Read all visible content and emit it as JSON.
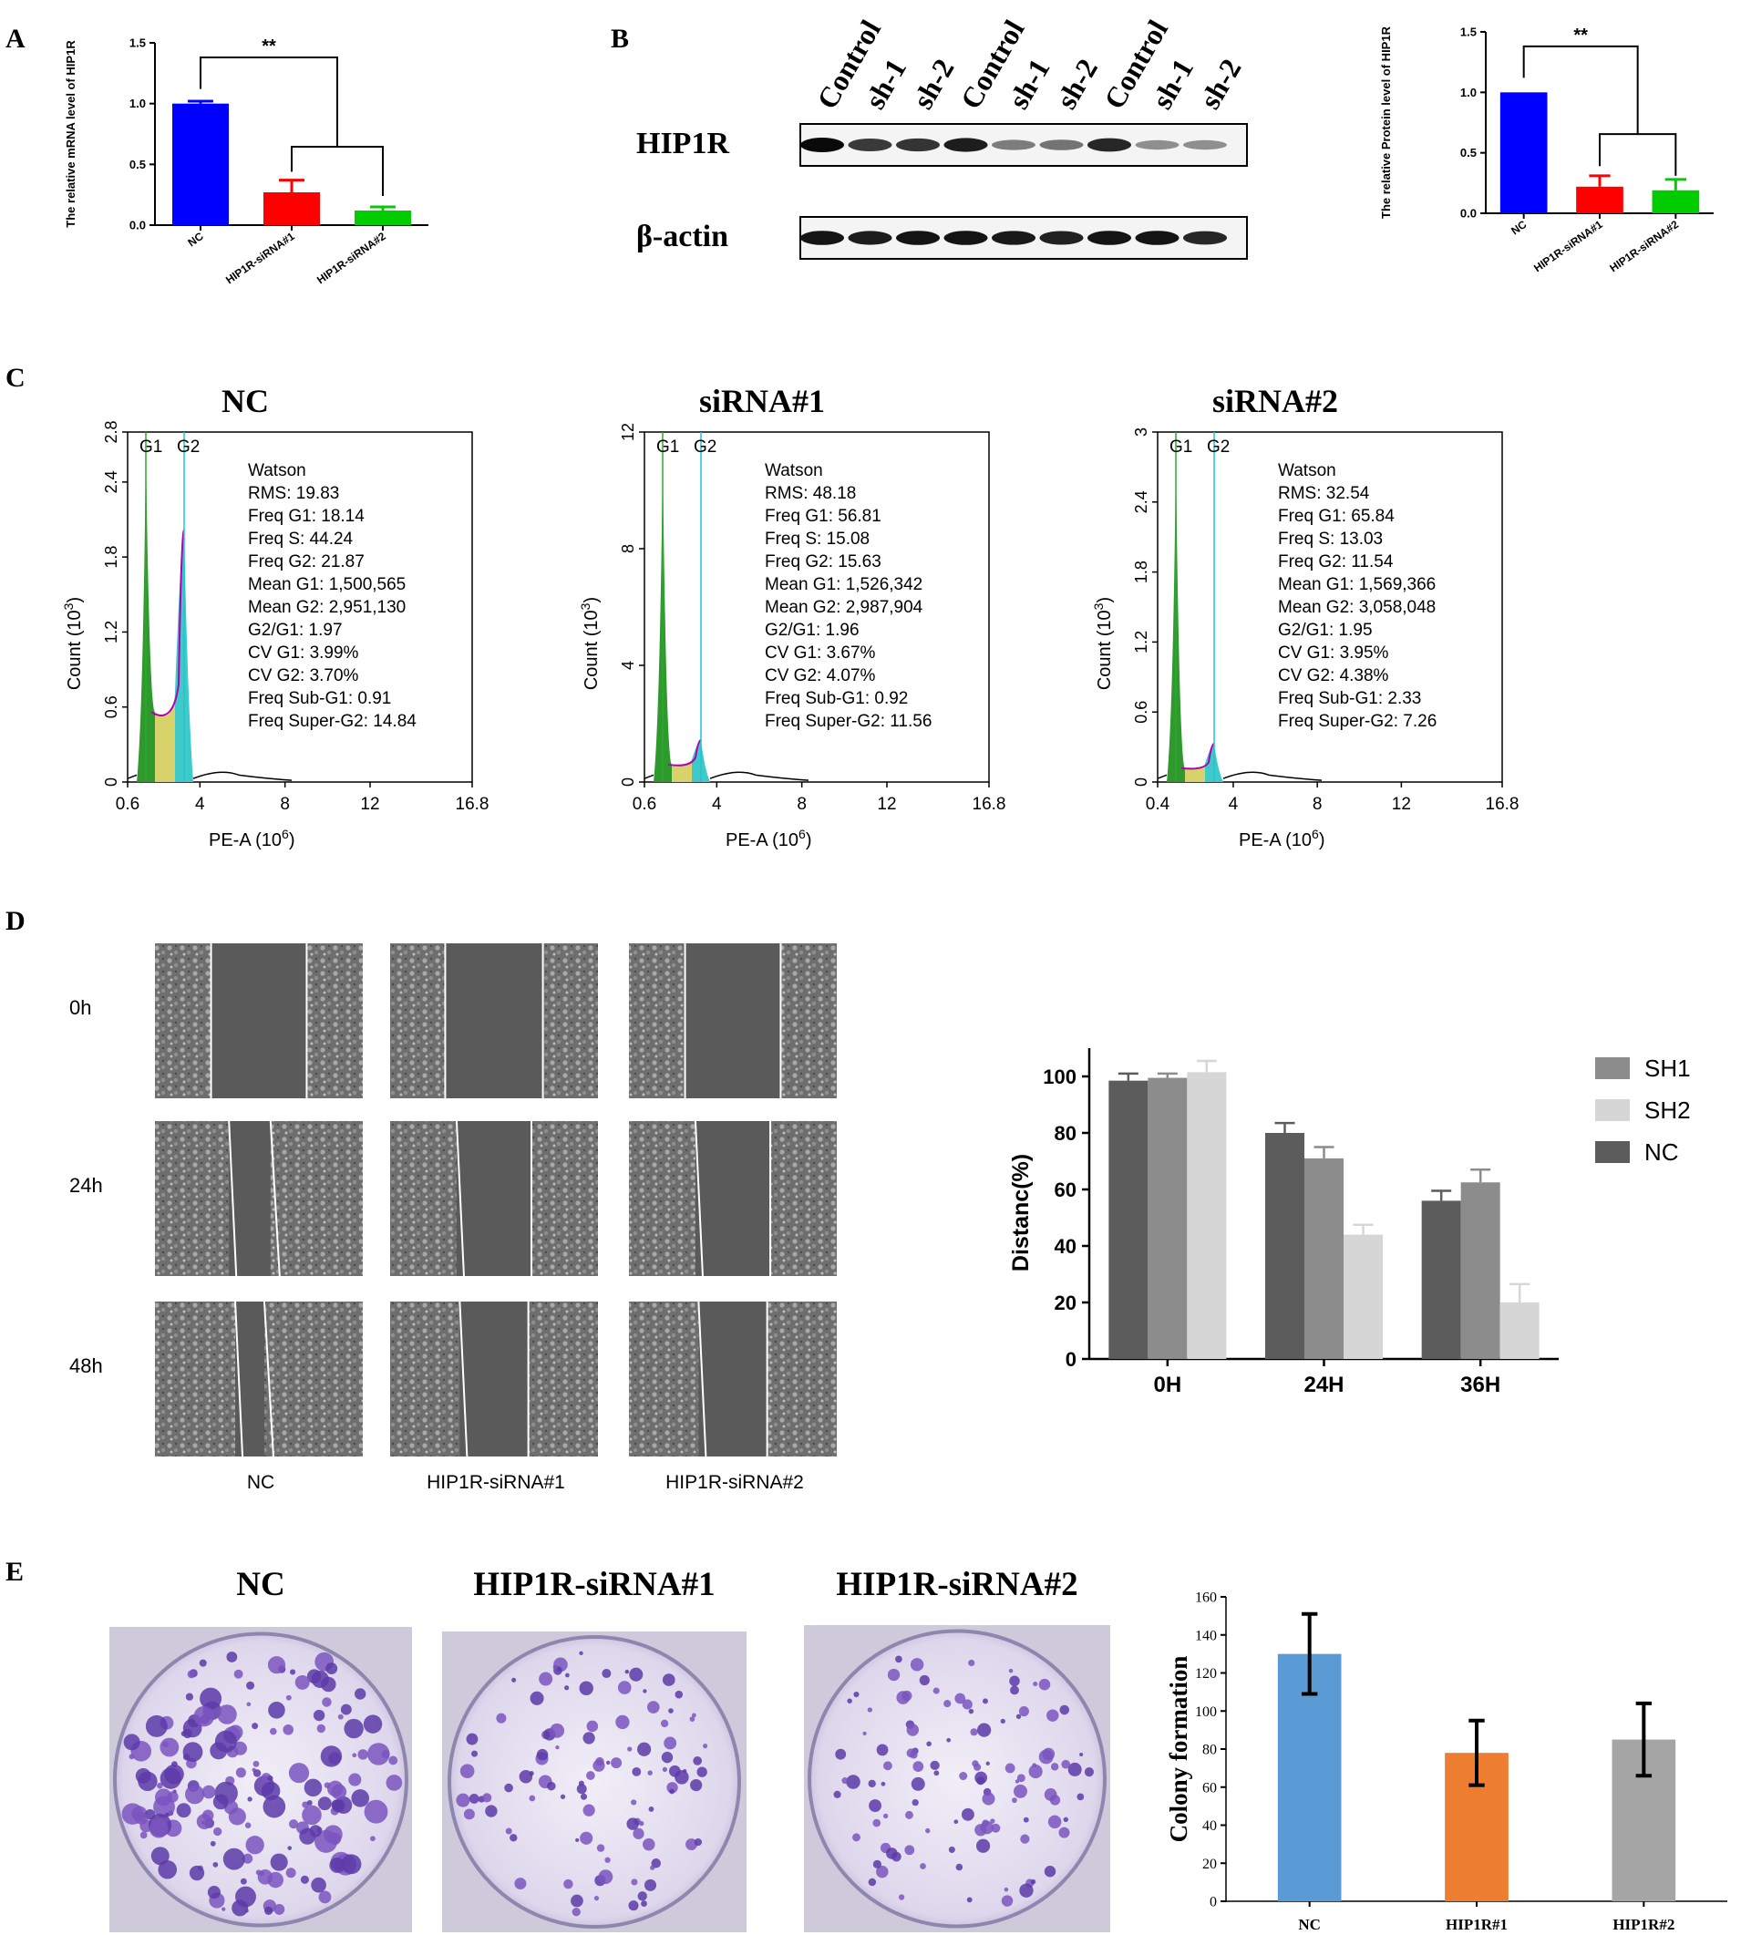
{
  "panel_labels": [
    "A",
    "B",
    "C",
    "D",
    "E"
  ],
  "chart_data": [
    {
      "id": "A",
      "type": "bar",
      "categories": [
        "NC",
        "HIP1R-siRNA#1",
        "HIP1R-siRNA#2"
      ],
      "values": [
        1.0,
        0.27,
        0.12
      ],
      "errors": [
        0.02,
        0.1,
        0.03
      ],
      "colors": [
        "#0000ff",
        "#ff0000",
        "#00cc00"
      ],
      "ylabel": "The relative mRNA level of HIP1R",
      "ylim": [
        0,
        1.5
      ],
      "yticks": [
        "0.0",
        "0.5",
        "1.0",
        "1.5"
      ],
      "significance": "**"
    },
    {
      "id": "B-quant",
      "type": "bar",
      "categories": [
        "NC",
        "HIP1R-siRNA#1",
        "HIP1R-siRNA#2"
      ],
      "values": [
        1.0,
        0.22,
        0.19
      ],
      "errors": [
        0.0,
        0.09,
        0.09
      ],
      "colors": [
        "#0000ff",
        "#ff0000",
        "#00cc00"
      ],
      "ylabel": "The relative Protein level of HIP1R",
      "ylim": [
        0,
        1.5
      ],
      "yticks": [
        "0.0",
        "0.5",
        "1.0",
        "1.5"
      ],
      "significance": "**"
    },
    {
      "id": "D-quant",
      "type": "bar",
      "categories": [
        "0H",
        "24H",
        "36H"
      ],
      "series": [
        {
          "name": "NC",
          "color": "#5c5c5c",
          "values": [
            98.5,
            80,
            56
          ],
          "errors": [
            2.5,
            3.5,
            3.5
          ]
        },
        {
          "name": "SH1",
          "color": "#8c8c8c",
          "values": [
            99.5,
            71,
            62.5
          ],
          "errors": [
            1.5,
            4,
            4.5
          ]
        },
        {
          "name": "SH2",
          "color": "#d6d6d6",
          "values": [
            101.5,
            44,
            20
          ],
          "errors": [
            4,
            3.5,
            6.5
          ]
        }
      ],
      "legend_order": [
        "SH1",
        "SH2",
        "NC"
      ],
      "ylabel": "Distanc(%)",
      "ylim": [
        0,
        110
      ],
      "yticks": [
        "0",
        "20",
        "40",
        "60",
        "80",
        "100"
      ]
    },
    {
      "id": "E-quant",
      "type": "bar",
      "categories": [
        "NC",
        "HIP1R#1",
        "HIP1R#2"
      ],
      "values": [
        130,
        78,
        85
      ],
      "errors": [
        21,
        17,
        19
      ],
      "colors": [
        "#5b9bd5",
        "#ed7d31",
        "#a5a5a5"
      ],
      "ylabel": "Colony formation",
      "ylim": [
        0,
        160
      ],
      "yticks": [
        "0",
        "20",
        "40",
        "60",
        "80",
        "100",
        "120",
        "140",
        "160"
      ]
    }
  ],
  "western_blot": {
    "lanes": [
      "Control",
      "sh-1",
      "sh-2",
      "Control",
      "sh-1",
      "sh-2",
      "Control",
      "sh-1",
      "sh-2"
    ],
    "rows": [
      {
        "label": "HIP1R",
        "intensities": [
          1.0,
          0.75,
          0.78,
          0.9,
          0.4,
          0.45,
          0.85,
          0.3,
          0.3
        ]
      },
      {
        "label": "β-actin",
        "intensities": [
          0.95,
          0.9,
          0.95,
          0.95,
          0.92,
          0.88,
          0.95,
          0.95,
          0.85
        ]
      }
    ]
  },
  "flow_cytometry": [
    {
      "title": "NC",
      "ytick_labels": [
        "0",
        "0.6",
        "1.2",
        "1.8",
        "2.4",
        "2.8"
      ],
      "xtick_labels": [
        "0.6",
        "4",
        "8",
        "12",
        "16.8"
      ],
      "stats": [
        "Watson",
        "RMS: 19.83",
        "Freq G1: 18.14",
        "Freq S: 44.24",
        "Freq G2: 21.87",
        "Mean G1: 1,500,565",
        "Mean G2: 2,951,130",
        "G2/G1: 1.97",
        "CV G1: 3.99%",
        "CV G2: 3.70%",
        "Freq Sub-G1: 0.91",
        "Freq Super-G2: 14.84"
      ]
    },
    {
      "title": "siRNA#1",
      "ytick_labels": [
        "0",
        "4",
        "8",
        "12"
      ],
      "xtick_labels": [
        "0.6",
        "4",
        "8",
        "12",
        "16.8"
      ],
      "stats": [
        "Watson",
        "RMS: 48.18",
        "Freq G1: 56.81",
        "Freq S: 15.08",
        "Freq G2: 15.63",
        "Mean G1: 1,526,342",
        "Mean G2: 2,987,904",
        "G2/G1: 1.96",
        "CV G1: 3.67%",
        "CV G2: 4.07%",
        "Freq Sub-G1: 0.92",
        "Freq Super-G2: 11.56"
      ]
    },
    {
      "title": "siRNA#2",
      "ytick_labels": [
        "0",
        "0.6",
        "1.2",
        "1.8",
        "2.4",
        "3"
      ],
      "xtick_labels": [
        "0.4",
        "4",
        "8",
        "12",
        "16.8"
      ],
      "stats": [
        "Watson",
        "RMS: 32.54",
        "Freq G1: 65.84",
        "Freq S: 13.03",
        "Freq G2: 11.54",
        "Mean G1: 1,569,366",
        "Mean G2: 3,058,048",
        "G2/G1: 1.95",
        "CV G1: 3.95%",
        "CV G2: 4.38%",
        "Freq Sub-G1: 2.33",
        "Freq Super-G2: 7.26"
      ]
    }
  ],
  "flow_common": {
    "ylabel_text": "Count  (10",
    "ylabel_exp": "3",
    "ylabel_end": ")",
    "xlabel_text": "PE-A  (10",
    "xlabel_exp": "6",
    "xlabel_end": ")",
    "g1_label": "G1",
    "g2_label": "G2"
  },
  "wound_healing": {
    "times": [
      "0h",
      "24h",
      "48h"
    ],
    "groups": [
      "NC",
      "HIP1R-siRNA#1",
      "HIP1R-siRNA#2"
    ],
    "gap_widths": [
      [
        0.46,
        0.47,
        0.46
      ],
      [
        0.2,
        0.36,
        0.36
      ],
      [
        0.14,
        0.33,
        0.33
      ]
    ]
  },
  "colony": {
    "titles": [
      "NC",
      "HIP1R-siRNA#1",
      "HIP1R-siRNA#2"
    ],
    "colony_density": [
      1.0,
      0.6,
      0.65
    ]
  }
}
